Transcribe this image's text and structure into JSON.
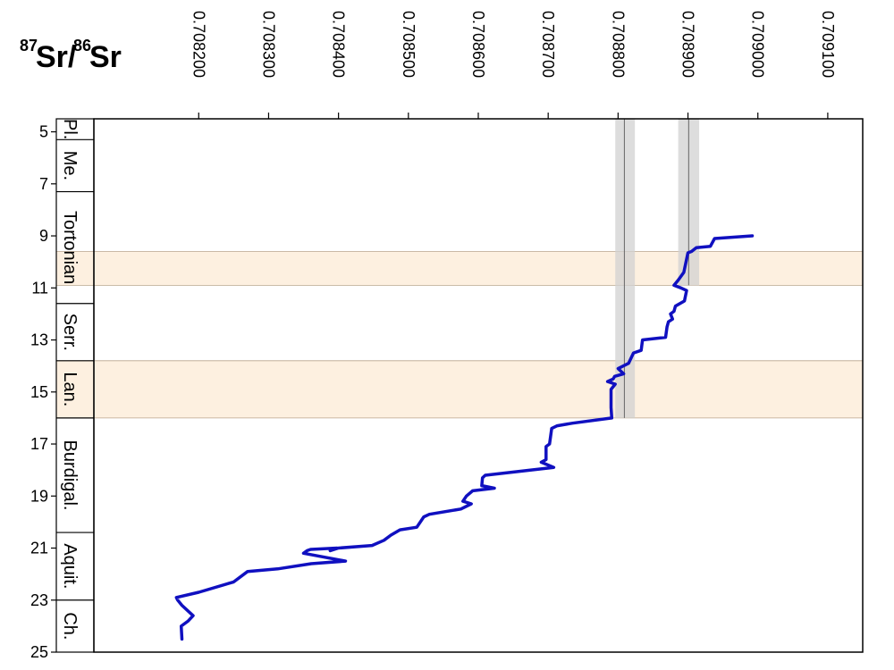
{
  "chart_data": {
    "type": "line",
    "title_parts": [
      "87",
      "Sr/",
      "86",
      "Sr"
    ],
    "xlim": [
      0.70805,
      0.70915
    ],
    "ylim": [
      4.5,
      25
    ],
    "x_ticks": [
      "0.708200",
      "0.708300",
      "0.708400",
      "0.708500",
      "0.708600",
      "0.708700",
      "0.708800",
      "0.708900",
      "0.709000",
      "0.709100"
    ],
    "x_tick_values": [
      0.7082,
      0.7083,
      0.7084,
      0.7085,
      0.7086,
      0.7087,
      0.7088,
      0.7089,
      0.709,
      0.7091
    ],
    "y_ticks": [
      "5",
      "7",
      "9",
      "11",
      "13",
      "15",
      "17",
      "19",
      "21",
      "23",
      "25"
    ],
    "y_tick_values": [
      5,
      7,
      9,
      11,
      13,
      15,
      17,
      19,
      21,
      23,
      25
    ],
    "stages": [
      {
        "label": "Pl.",
        "top": 4.5,
        "bottom": 5.3
      },
      {
        "label": "Me.",
        "top": 5.3,
        "bottom": 7.3
      },
      {
        "label": "Tortonian",
        "top": 7.3,
        "bottom": 11.6
      },
      {
        "label": "Serr.",
        "top": 11.6,
        "bottom": 13.8
      },
      {
        "label": "Lan.",
        "top": 13.8,
        "bottom": 16.0
      },
      {
        "label": "Burdigal.",
        "top": 16.0,
        "bottom": 20.4
      },
      {
        "label": "Aquit.",
        "top": 20.4,
        "bottom": 23.0
      },
      {
        "label": "Ch.",
        "top": 23.0,
        "bottom": 25.0
      }
    ],
    "highlight_bands": [
      {
        "y_from": 9.6,
        "y_to": 10.9
      },
      {
        "y_from": 13.8,
        "y_to": 16.0
      }
    ],
    "reference_bands": [
      {
        "x_center": 0.708809,
        "x_from": 0.708796,
        "x_to": 0.708824,
        "y_from": 4.5,
        "y_to": 16.0
      },
      {
        "x_center": 0.708901,
        "x_from": 0.708886,
        "x_to": 0.708916,
        "y_from": 4.5,
        "y_to": 10.9
      }
    ],
    "series": [
      {
        "color": "#1010c0",
        "points": [
          [
            0.708992,
            9.0
          ],
          [
            0.708938,
            9.1
          ],
          [
            0.708932,
            9.4
          ],
          [
            0.708912,
            9.45
          ],
          [
            0.708905,
            9.6
          ],
          [
            0.7089,
            9.65
          ],
          [
            0.708894,
            10.4
          ],
          [
            0.708886,
            10.7
          ],
          [
            0.70888,
            10.9
          ],
          [
            0.70889,
            11.0
          ],
          [
            0.708898,
            11.1
          ],
          [
            0.708895,
            11.5
          ],
          [
            0.708882,
            11.7
          ],
          [
            0.70888,
            11.9
          ],
          [
            0.708875,
            12.0
          ],
          [
            0.708878,
            12.2
          ],
          [
            0.708872,
            12.3
          ],
          [
            0.70887,
            12.5
          ],
          [
            0.708868,
            12.9
          ],
          [
            0.708835,
            13.0
          ],
          [
            0.708833,
            13.4
          ],
          [
            0.708822,
            13.5
          ],
          [
            0.708815,
            13.9
          ],
          [
            0.7088,
            14.1
          ],
          [
            0.708808,
            14.3
          ],
          [
            0.708795,
            14.4
          ],
          [
            0.708793,
            14.5
          ],
          [
            0.708785,
            14.6
          ],
          [
            0.708796,
            14.7
          ],
          [
            0.70879,
            14.9
          ],
          [
            0.70879,
            15.6
          ],
          [
            0.708791,
            16.0
          ],
          [
            0.708735,
            16.2
          ],
          [
            0.708713,
            16.3
          ],
          [
            0.708705,
            16.4
          ],
          [
            0.708702,
            17.0
          ],
          [
            0.708697,
            17.1
          ],
          [
            0.708697,
            17.6
          ],
          [
            0.70869,
            17.7
          ],
          [
            0.708708,
            17.9
          ],
          [
            0.70861,
            18.2
          ],
          [
            0.708606,
            18.3
          ],
          [
            0.708605,
            18.6
          ],
          [
            0.708623,
            18.7
          ],
          [
            0.708592,
            18.8
          ],
          [
            0.708583,
            19.0
          ],
          [
            0.708578,
            19.2
          ],
          [
            0.70859,
            19.3
          ],
          [
            0.708575,
            19.5
          ],
          [
            0.70853,
            19.7
          ],
          [
            0.708522,
            19.8
          ],
          [
            0.708512,
            20.2
          ],
          [
            0.708488,
            20.3
          ],
          [
            0.708475,
            20.5
          ],
          [
            0.708465,
            20.7
          ],
          [
            0.708448,
            20.9
          ],
          [
            0.7084,
            21.0
          ],
          [
            0.708388,
            21.1
          ],
          [
            0.708398,
            21.0
          ],
          [
            0.70836,
            21.05
          ],
          [
            0.708355,
            21.1
          ],
          [
            0.70835,
            21.2
          ],
          [
            0.70841,
            21.5
          ],
          [
            0.708361,
            21.6
          ],
          [
            0.708313,
            21.8
          ],
          [
            0.70827,
            21.9
          ],
          [
            0.70825,
            22.3
          ],
          [
            0.7082,
            22.7
          ],
          [
            0.708168,
            22.9
          ],
          [
            0.70817,
            23.0
          ],
          [
            0.708176,
            23.2
          ],
          [
            0.708192,
            23.6
          ],
          [
            0.708185,
            23.8
          ],
          [
            0.708175,
            24.0
          ],
          [
            0.708176,
            24.5
          ]
        ]
      }
    ]
  }
}
